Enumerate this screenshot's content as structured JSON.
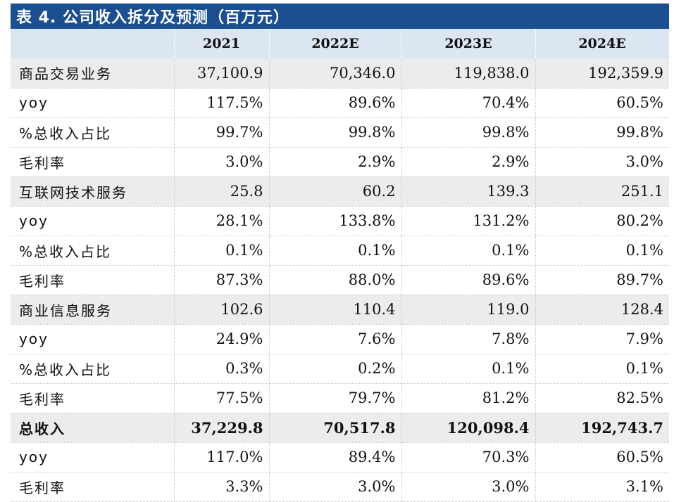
{
  "title": "表 4. 公司收入拆分及预测（百万元）",
  "columns": [
    "",
    "2021",
    "2022E",
    "2023E",
    "2024E"
  ],
  "rows": [
    {
      "label": "商品交易业务",
      "values": [
        "37,100.9",
        "70,346.0",
        "119,838.0",
        "192,359.9"
      ],
      "kind": "section"
    },
    {
      "label": "yoy",
      "values": [
        "117.5%",
        "89.6%",
        "70.4%",
        "60.5%"
      ],
      "kind": "normal"
    },
    {
      "label": "%总收入占比",
      "values": [
        "99.7%",
        "99.8%",
        "99.8%",
        "99.8%"
      ],
      "kind": "normal"
    },
    {
      "label": "毛利率",
      "values": [
        "3.0%",
        "2.9%",
        "2.9%",
        "3.0%"
      ],
      "kind": "normal"
    },
    {
      "label": "互联网技术服务",
      "values": [
        "25.8",
        "60.2",
        "139.3",
        "251.1"
      ],
      "kind": "section"
    },
    {
      "label": "yoy",
      "values": [
        "28.1%",
        "133.8%",
        "131.2%",
        "80.2%"
      ],
      "kind": "normal"
    },
    {
      "label": "%总收入占比",
      "values": [
        "0.1%",
        "0.1%",
        "0.1%",
        "0.1%"
      ],
      "kind": "normal"
    },
    {
      "label": "毛利率",
      "values": [
        "87.3%",
        "88.0%",
        "89.6%",
        "89.7%"
      ],
      "kind": "normal"
    },
    {
      "label": "商业信息服务",
      "values": [
        "102.6",
        "110.4",
        "119.0",
        "128.4"
      ],
      "kind": "section"
    },
    {
      "label": "yoy",
      "values": [
        "24.9%",
        "7.6%",
        "7.8%",
        "7.9%"
      ],
      "kind": "normal"
    },
    {
      "label": "%总收入占比",
      "values": [
        "0.3%",
        "0.2%",
        "0.1%",
        "0.1%"
      ],
      "kind": "normal"
    },
    {
      "label": "毛利率",
      "values": [
        "77.5%",
        "79.7%",
        "81.2%",
        "82.5%"
      ],
      "kind": "normal"
    },
    {
      "label": "总收入",
      "values": [
        "37,229.8",
        "70,517.8",
        "120,098.4",
        "192,743.7"
      ],
      "kind": "total"
    },
    {
      "label": "yoy",
      "values": [
        "117.0%",
        "89.4%",
        "70.3%",
        "60.5%"
      ],
      "kind": "normal"
    },
    {
      "label": "毛利率",
      "values": [
        "3.3%",
        "3.0%",
        "3.0%",
        "3.1%"
      ],
      "kind": "normal"
    }
  ],
  "colors": {
    "title_bar": "#1b4f8f",
    "header_bg": "#dce6f1",
    "section_bg": "#ececec"
  }
}
